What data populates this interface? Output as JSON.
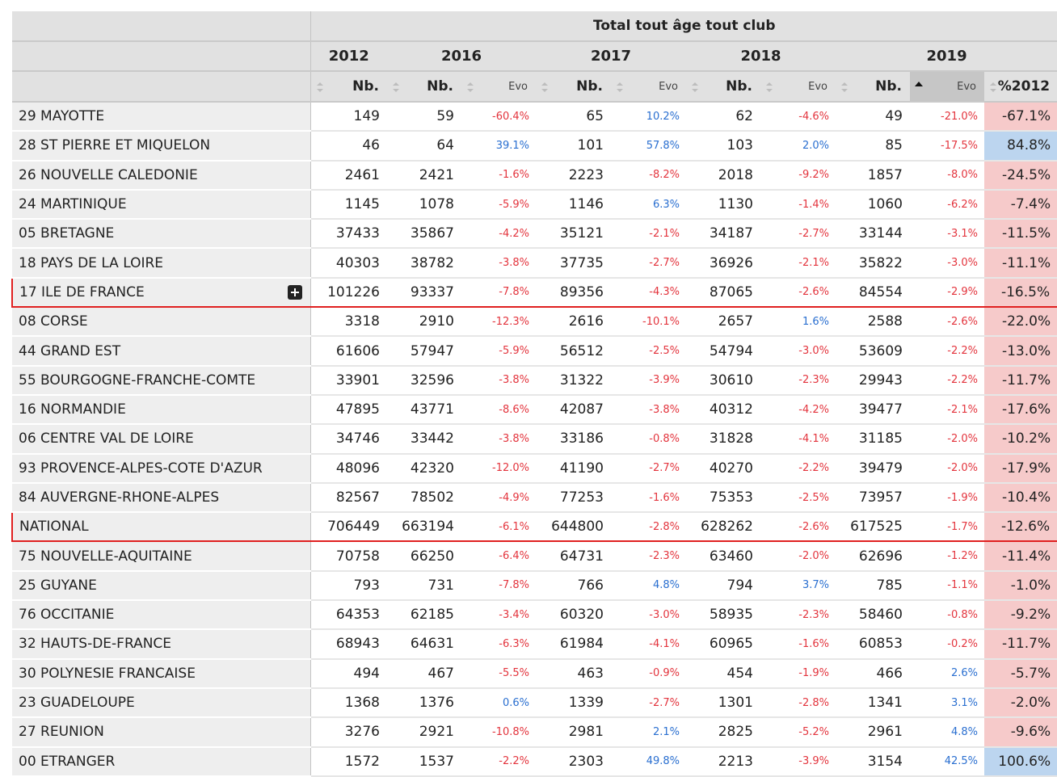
{
  "table": {
    "title": "Total tout âge tout club",
    "years": [
      "2012",
      "2016",
      "2017",
      "2018",
      "2019"
    ],
    "columns": [
      "Nb.",
      "Nb.",
      "Evo",
      "Nb.",
      "Evo",
      "Nb.",
      "Evo",
      "Nb.",
      "Evo",
      "%2012"
    ],
    "sorted_column": 8,
    "rows": [
      {
        "label": "29 MAYOTTE",
        "cells": [
          149,
          59,
          "-60.4%",
          65,
          "10.2%",
          62,
          "-4.6%",
          49,
          "-21.0%",
          "-67.1%"
        ]
      },
      {
        "label": "28 ST PIERRE ET MIQUELON",
        "cells": [
          46,
          64,
          "39.1%",
          101,
          "57.8%",
          103,
          "2.0%",
          85,
          "-17.5%",
          "84.8%"
        ]
      },
      {
        "label": "26 NOUVELLE CALEDONIE",
        "cells": [
          2461,
          2421,
          "-1.6%",
          2223,
          "-8.2%",
          2018,
          "-9.2%",
          1857,
          "-8.0%",
          "-24.5%"
        ]
      },
      {
        "label": "24 MARTINIQUE",
        "cells": [
          1145,
          1078,
          "-5.9%",
          1146,
          "6.3%",
          1130,
          "-1.4%",
          1060,
          "-6.2%",
          "-7.4%"
        ]
      },
      {
        "label": "05 BRETAGNE",
        "cells": [
          37433,
          35867,
          "-4.2%",
          35121,
          "-2.1%",
          34187,
          "-2.7%",
          33144,
          "-3.1%",
          "-11.5%"
        ]
      },
      {
        "label": "18 PAYS DE LA LOIRE",
        "cells": [
          40303,
          38782,
          "-3.8%",
          37735,
          "-2.7%",
          36926,
          "-2.1%",
          35822,
          "-3.0%",
          "-11.1%"
        ]
      },
      {
        "label": "17 ILE DE FRANCE",
        "highlight": true,
        "expandable": true,
        "cells": [
          101226,
          93337,
          "-7.8%",
          89356,
          "-4.3%",
          87065,
          "-2.6%",
          84554,
          "-2.9%",
          "-16.5%"
        ]
      },
      {
        "label": "08 CORSE",
        "cells": [
          3318,
          2910,
          "-12.3%",
          2616,
          "-10.1%",
          2657,
          "1.6%",
          2588,
          "-2.6%",
          "-22.0%"
        ]
      },
      {
        "label": "44 GRAND EST",
        "cells": [
          61606,
          57947,
          "-5.9%",
          56512,
          "-2.5%",
          54794,
          "-3.0%",
          53609,
          "-2.2%",
          "-13.0%"
        ]
      },
      {
        "label": "55 BOURGOGNE-FRANCHE-COMTE",
        "cells": [
          33901,
          32596,
          "-3.8%",
          31322,
          "-3.9%",
          30610,
          "-2.3%",
          29943,
          "-2.2%",
          "-11.7%"
        ]
      },
      {
        "label": "16 NORMANDIE",
        "cells": [
          47895,
          43771,
          "-8.6%",
          42087,
          "-3.8%",
          40312,
          "-4.2%",
          39477,
          "-2.1%",
          "-17.6%"
        ]
      },
      {
        "label": "06 CENTRE VAL DE LOIRE",
        "cells": [
          34746,
          33442,
          "-3.8%",
          33186,
          "-0.8%",
          31828,
          "-4.1%",
          31185,
          "-2.0%",
          "-10.2%"
        ]
      },
      {
        "label": "93 PROVENCE-ALPES-COTE D'AZUR",
        "cells": [
          48096,
          42320,
          "-12.0%",
          41190,
          "-2.7%",
          40270,
          "-2.2%",
          39479,
          "-2.0%",
          "-17.9%"
        ]
      },
      {
        "label": "84 AUVERGNE-RHONE-ALPES",
        "cells": [
          82567,
          78502,
          "-4.9%",
          77253,
          "-1.6%",
          75353,
          "-2.5%",
          73957,
          "-1.9%",
          "-10.4%"
        ]
      },
      {
        "label": "NATIONAL",
        "highlight": true,
        "cells": [
          706449,
          663194,
          "-6.1%",
          644800,
          "-2.8%",
          628262,
          "-2.6%",
          617525,
          "-1.7%",
          "-12.6%"
        ]
      },
      {
        "label": "75 NOUVELLE-AQUITAINE",
        "cells": [
          70758,
          66250,
          "-6.4%",
          64731,
          "-2.3%",
          63460,
          "-2.0%",
          62696,
          "-1.2%",
          "-11.4%"
        ]
      },
      {
        "label": "25 GUYANE",
        "cells": [
          793,
          731,
          "-7.8%",
          766,
          "4.8%",
          794,
          "3.7%",
          785,
          "-1.1%",
          "-1.0%"
        ]
      },
      {
        "label": "76 OCCITANIE",
        "cells": [
          64353,
          62185,
          "-3.4%",
          60320,
          "-3.0%",
          58935,
          "-2.3%",
          58460,
          "-0.8%",
          "-9.2%"
        ]
      },
      {
        "label": "32 HAUTS-DE-FRANCE",
        "cells": [
          68943,
          64631,
          "-6.3%",
          61984,
          "-4.1%",
          60965,
          "-1.6%",
          60853,
          "-0.2%",
          "-11.7%"
        ]
      },
      {
        "label": "30 POLYNESIE FRANCAISE",
        "cells": [
          494,
          467,
          "-5.5%",
          463,
          "-0.9%",
          454,
          "-1.9%",
          466,
          "2.6%",
          "-5.7%"
        ]
      },
      {
        "label": "23 GUADELOUPE",
        "cells": [
          1368,
          1376,
          "0.6%",
          1339,
          "-2.7%",
          1301,
          "-2.8%",
          1341,
          "3.1%",
          "-2.0%"
        ]
      },
      {
        "label": "27 REUNION",
        "cells": [
          3276,
          2921,
          "-10.8%",
          2981,
          "2.1%",
          2825,
          "-5.2%",
          2961,
          "4.8%",
          "-9.6%"
        ]
      },
      {
        "label": "00 ETRANGER",
        "cells": [
          1572,
          1537,
          "-2.2%",
          2303,
          "49.8%",
          2213,
          "-3.9%",
          3154,
          "42.5%",
          "100.6%"
        ]
      }
    ]
  }
}
